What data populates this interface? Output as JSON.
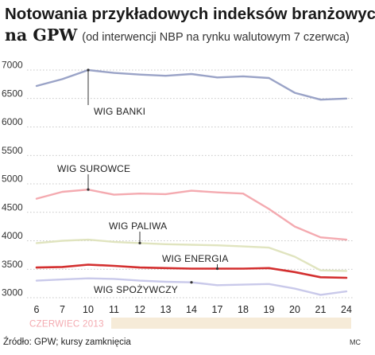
{
  "chart_data": {
    "type": "line",
    "title": "Notowania przykładowych indeksów branżowych",
    "title_line2": "na GPW",
    "subtitle": "(od interwencji NBP na rynku walutowym 7 czerwca)",
    "categories": [
      "6",
      "7",
      "10",
      "11",
      "12",
      "13",
      "14",
      "17",
      "18",
      "19",
      "20",
      "21",
      "24"
    ],
    "period_label": "CZERWIEC 2013",
    "ylim": [
      3000,
      7000
    ],
    "yticks": [
      3000,
      3500,
      4000,
      4500,
      5000,
      5500,
      6000,
      6500,
      7000
    ],
    "grid": "horizontal dashed",
    "series": [
      {
        "name": "WIG BANKI",
        "color": "#9aa3c7",
        "values": [
          6720,
          6840,
          7000,
          6950,
          6920,
          6900,
          6930,
          6870,
          6890,
          6860,
          6600,
          6480,
          6500
        ]
      },
      {
        "name": "WIG SUROWCE",
        "color": "#f4aab0",
        "values": [
          4740,
          4860,
          4900,
          4810,
          4830,
          4820,
          4880,
          4850,
          4830,
          4560,
          4250,
          4060,
          4020
        ]
      },
      {
        "name": "WIG PALIWA",
        "color": "#e0e4bf",
        "values": [
          3960,
          4000,
          4020,
          3980,
          3960,
          3940,
          3930,
          3920,
          3900,
          3880,
          3720,
          3480,
          3470
        ]
      },
      {
        "name": "WIG ENERGIA",
        "color": "#d32f2f",
        "values": [
          3530,
          3540,
          3580,
          3560,
          3530,
          3520,
          3510,
          3510,
          3510,
          3520,
          3450,
          3360,
          3350
        ]
      },
      {
        "name": "WIG SPOŻYWCZY",
        "color": "#c9c9ea",
        "values": [
          3300,
          3320,
          3340,
          3330,
          3300,
          3280,
          3270,
          3220,
          3230,
          3240,
          3160,
          3050,
          3110
        ]
      }
    ],
    "annotations": [
      {
        "label": "WIG BANKI",
        "series": 0,
        "category": "10"
      },
      {
        "label": "WIG SUROWCE",
        "series": 1,
        "category": "10"
      },
      {
        "label": "WIG PALIWA",
        "series": 2,
        "category": "12"
      },
      {
        "label": "WIG ENERGIA",
        "series": 3,
        "category": "17"
      },
      {
        "label": "WIG SPOŻYWCZY",
        "series": 4,
        "category": "14"
      }
    ]
  },
  "source": "Źródło: GPW; kursy zamknięcia",
  "credit": "MC"
}
